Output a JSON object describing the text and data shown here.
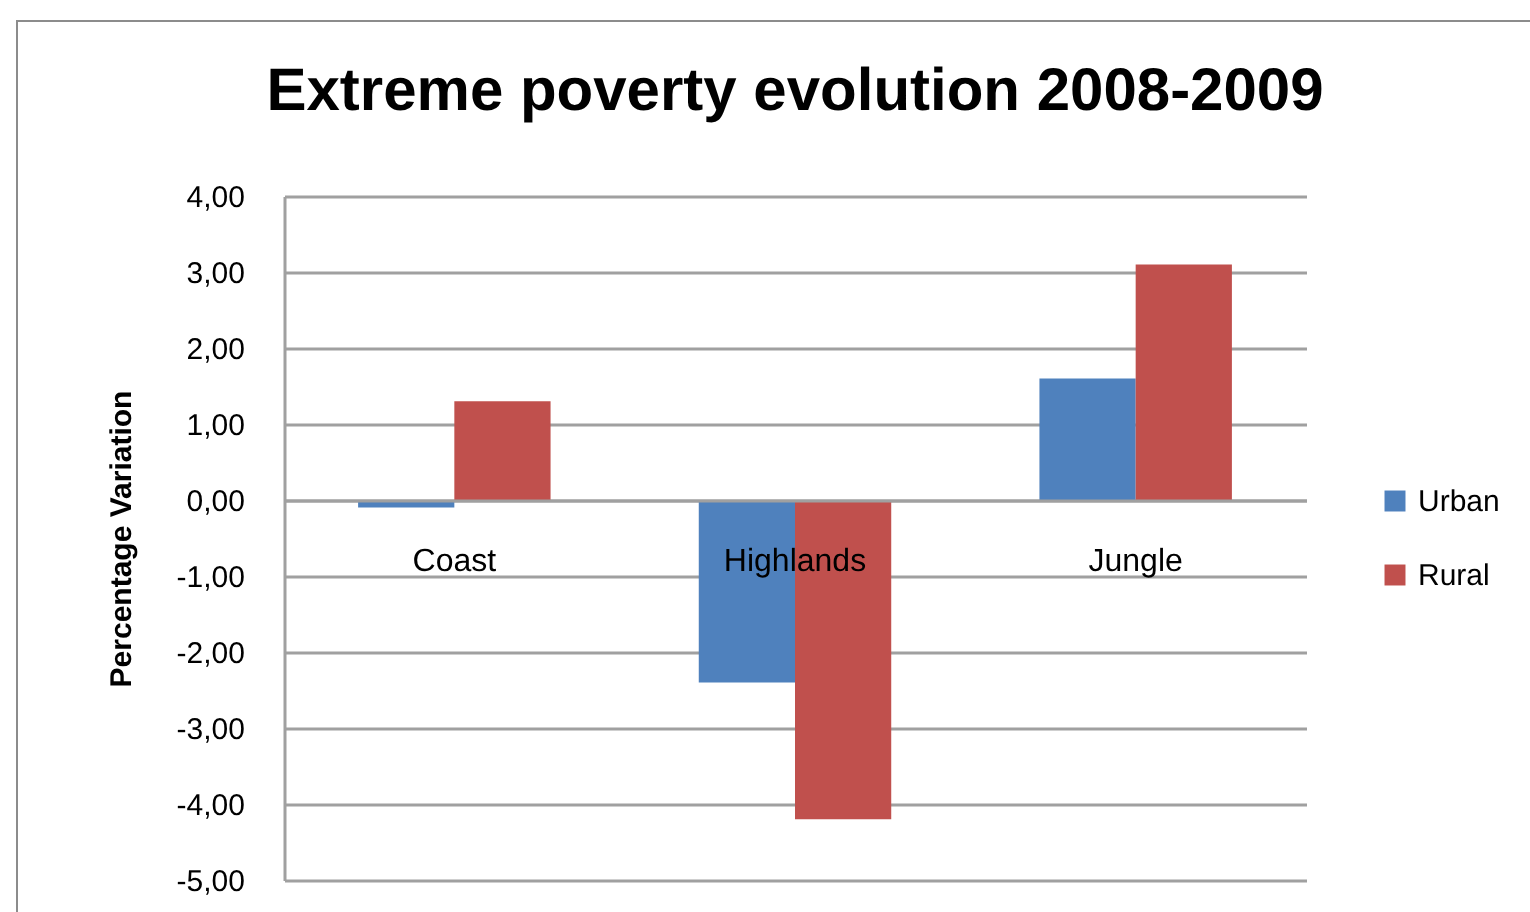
{
  "chart_data": {
    "type": "bar",
    "title": "Extreme poverty evolution 2008-2009",
    "ylabel": "Percentage Variation",
    "categories": [
      "Coast",
      "Highlands",
      "Jungle"
    ],
    "series": [
      {
        "name": "Urban",
        "color": "#4f81bd",
        "values": [
          -0.1,
          -2.4,
          1.6
        ]
      },
      {
        "name": "Rural",
        "color": "#c0504d",
        "values": [
          1.3,
          -4.2,
          3.1
        ]
      }
    ],
    "ylim": [
      -5,
      4
    ],
    "yticks": [
      {
        "value": 4,
        "label": "4,00"
      },
      {
        "value": 3,
        "label": "3,00"
      },
      {
        "value": 2,
        "label": "2,00"
      },
      {
        "value": 1,
        "label": "1,00"
      },
      {
        "value": 0,
        "label": "0,00"
      },
      {
        "value": -1,
        "label": "-1,00"
      },
      {
        "value": -2,
        "label": "-2,00"
      },
      {
        "value": -3,
        "label": "-3,00"
      },
      {
        "value": -4,
        "label": "-4,00"
      },
      {
        "value": -5,
        "label": "-5,00"
      }
    ],
    "grid": "y",
    "legend": "right"
  }
}
